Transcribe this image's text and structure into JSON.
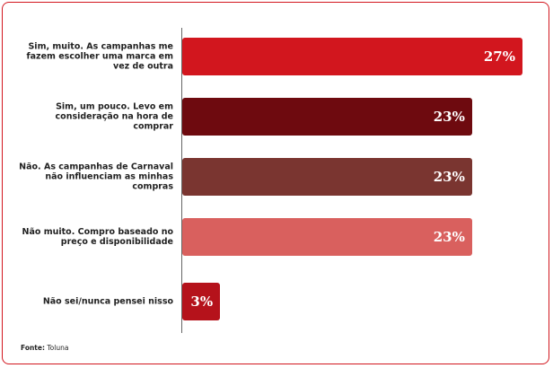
{
  "chart_data": {
    "type": "hbar",
    "categories": [
      "Sim, muito. As campanhas me fazem escolher uma marca em vez de outra",
      "Sim, um pouco. Levo em consideração na hora de comprar",
      "Não. As campanhas de Carnaval não influenciam as minhas compras",
      "Não muito. Compro baseado no preço e disponibilidade",
      "Não sei/nunca pensei nisso"
    ],
    "values": [
      27,
      23,
      23,
      23,
      3
    ],
    "value_labels": [
      "27%",
      "23%",
      "23%",
      "23%",
      "3%"
    ],
    "colors": [
      "#d2161e",
      "#6e0a0f",
      "#7a3530",
      "#d9605e",
      "#b5121b"
    ],
    "xlim": [
      0,
      27
    ],
    "source_label": "Fonte:",
    "source": "Toluna"
  }
}
